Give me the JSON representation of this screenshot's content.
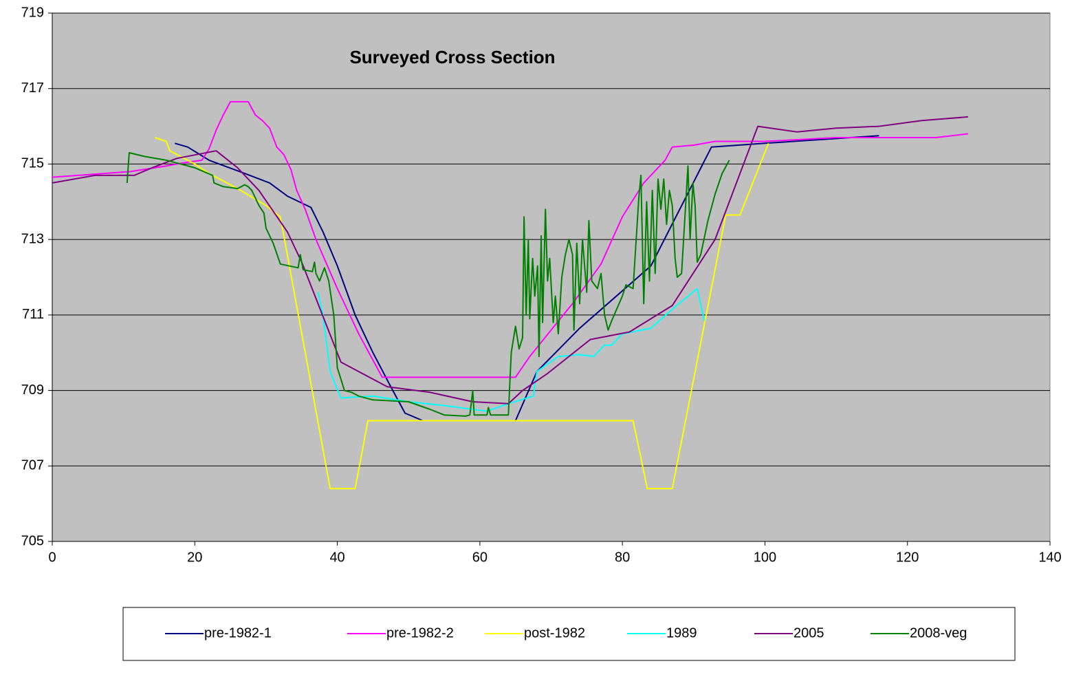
{
  "chart_data": {
    "type": "line",
    "title": "Surveyed Cross Section",
    "xlim": [
      0,
      140
    ],
    "xticks": [
      0,
      20,
      40,
      60,
      80,
      100,
      120,
      140
    ],
    "ylim": [
      705,
      719
    ],
    "yticks": [
      705,
      707,
      709,
      711,
      713,
      715,
      717,
      719
    ],
    "grid": true,
    "legend": "bottom",
    "series": [
      {
        "name": "pre-1982-1",
        "color": "#000080",
        "x": [
          17.2,
          19,
          22,
          27,
          30.5,
          33,
          36.3,
          38,
          40,
          42.5,
          45,
          47.5,
          49.5,
          52,
          65,
          68,
          74,
          84,
          92.5,
          100,
          116
        ],
        "values": [
          715.55,
          715.45,
          715.1,
          714.75,
          714.5,
          714.15,
          713.85,
          713.2,
          712.3,
          711.0,
          710.0,
          709.1,
          708.4,
          708.2,
          708.2,
          709.5,
          710.65,
          712.3,
          715.45,
          715.55,
          715.75
        ]
      },
      {
        "name": "pre-1982-2",
        "color": "#ff00ff",
        "x": [
          0,
          11,
          16,
          19,
          21,
          22,
          23,
          24,
          25,
          27.5,
          28.5,
          29.5,
          30.5,
          31.5,
          32.5,
          33.5,
          34.3,
          35.5,
          37,
          40,
          43,
          46.3,
          65,
          67,
          70,
          73,
          77,
          80,
          83,
          86,
          87,
          90,
          93,
          100,
          110,
          124,
          128.5
        ],
        "values": [
          714.65,
          714.8,
          714.95,
          715.05,
          715.1,
          715.4,
          715.9,
          716.3,
          716.65,
          716.65,
          716.3,
          716.15,
          715.95,
          715.45,
          715.25,
          714.85,
          714.3,
          713.8,
          713.0,
          711.7,
          710.5,
          709.35,
          709.35,
          709.9,
          710.6,
          711.3,
          712.35,
          713.6,
          714.5,
          715.1,
          715.45,
          715.5,
          715.6,
          715.6,
          715.7,
          715.7,
          715.8
        ]
      },
      {
        "name": "post-1982",
        "color": "#ffff00",
        "x": [
          14.4,
          16,
          16.5,
          18,
          20,
          22,
          26,
          30,
          32,
          39,
          42.5,
          44.3,
          81.5,
          83.5,
          87,
          94.5,
          96.5,
          100.5
        ],
        "values": [
          715.7,
          715.6,
          715.35,
          715.2,
          715.0,
          714.75,
          714.35,
          713.9,
          713.6,
          706.4,
          706.4,
          708.2,
          708.2,
          706.4,
          706.4,
          713.65,
          713.65,
          715.55
        ]
      },
      {
        "name": "1989",
        "color": "#00ffff",
        "x": [
          37.3,
          38,
          39,
          40.5,
          45,
          50,
          55,
          61,
          64,
          67.5,
          68,
          71,
          74,
          76,
          77.5,
          78.5,
          80,
          84,
          87,
          90.5,
          91.5
        ],
        "values": [
          711.6,
          711.0,
          709.5,
          708.8,
          708.85,
          708.7,
          708.6,
          708.45,
          708.65,
          708.85,
          709.5,
          709.9,
          709.95,
          709.9,
          710.2,
          710.2,
          710.5,
          710.65,
          711.15,
          711.7,
          710.85
        ]
      },
      {
        "name": "2005",
        "color": "#800080",
        "x": [
          0,
          6,
          11.5,
          14,
          17.5,
          23,
          26,
          29,
          33,
          35,
          40.5,
          47,
          53,
          59,
          64,
          66,
          69.5,
          75.5,
          81,
          87,
          93,
          99,
          104.5,
          110,
          116,
          122,
          128.5
        ],
        "values": [
          714.5,
          714.7,
          714.7,
          714.9,
          715.15,
          715.35,
          714.9,
          714.3,
          713.2,
          712.4,
          709.75,
          709.1,
          708.95,
          708.7,
          708.65,
          709.0,
          709.45,
          710.35,
          710.55,
          711.25,
          713.0,
          716.0,
          715.85,
          715.95,
          716.0,
          716.15,
          716.25
        ]
      },
      {
        "name": "2008-veg",
        "color": "#008000",
        "x": [
          10.5,
          10.8,
          13,
          16,
          20,
          22.5,
          22.7,
          24,
          26,
          27,
          27.5,
          28,
          29,
          29.7,
          30,
          31,
          32,
          34.5,
          34.8,
          35.2,
          36.5,
          36.8,
          37,
          37.5,
          38.2,
          38.8,
          39.5,
          40,
          40.5,
          41,
          42,
          43,
          45,
          50,
          53,
          55,
          58,
          58.6,
          59,
          59.2,
          61,
          61.2,
          61.5,
          64,
          64.4,
          65,
          65.5,
          66,
          66.2,
          66.5,
          66.8,
          67,
          67.4,
          67.7,
          68.1,
          68.3,
          68.6,
          68.8,
          69.2,
          69.5,
          69.8,
          70.3,
          70.6,
          71,
          71.5,
          72,
          72.5,
          73,
          73.2,
          73.6,
          74,
          74.4,
          75,
          75.3,
          75.7,
          76.5,
          77,
          77.5,
          78,
          78.5,
          80,
          80.5,
          81.5,
          82.3,
          82.6,
          83,
          83.4,
          83.8,
          84.2,
          84.6,
          85,
          85.4,
          85.8,
          86.2,
          86.6,
          87,
          87.4,
          87.7,
          88.3,
          89.2,
          89.5,
          89.9,
          90.2,
          90.5,
          91,
          92,
          93,
          94,
          95
        ],
        "values": [
          714.5,
          715.3,
          715.2,
          715.1,
          714.9,
          714.7,
          714.5,
          714.4,
          714.35,
          714.45,
          714.4,
          714.3,
          713.9,
          713.7,
          713.3,
          712.9,
          712.35,
          712.25,
          712.6,
          712.2,
          712.15,
          712.4,
          712.1,
          711.9,
          712.25,
          711.9,
          711.0,
          709.6,
          709.3,
          709.0,
          708.95,
          708.85,
          708.75,
          708.7,
          708.5,
          708.35,
          708.32,
          708.35,
          709.0,
          708.35,
          708.35,
          708.55,
          708.35,
          708.35,
          710.0,
          710.7,
          710.1,
          710.4,
          713.6,
          711.0,
          713.0,
          710.9,
          712.5,
          711.5,
          712.3,
          709.9,
          713.1,
          710.8,
          713.8,
          711.9,
          712.5,
          710.8,
          711.5,
          710.5,
          712.0,
          712.6,
          713.0,
          712.6,
          710.6,
          712.9,
          711.3,
          713.0,
          711.6,
          713.5,
          711.9,
          711.7,
          712.1,
          711.0,
          710.6,
          710.85,
          711.5,
          711.8,
          711.7,
          714.1,
          714.7,
          711.3,
          714.0,
          711.9,
          714.3,
          712.1,
          714.6,
          713.8,
          714.6,
          713.4,
          714.3,
          713.9,
          712.5,
          712.0,
          712.1,
          714.95,
          713.0,
          714.5,
          713.9,
          712.4,
          712.6,
          713.5,
          714.2,
          714.75,
          715.1
        ]
      }
    ]
  }
}
